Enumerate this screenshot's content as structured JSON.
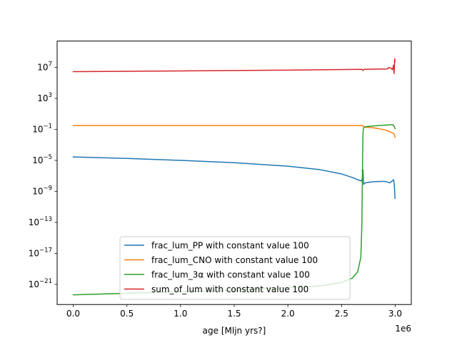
{
  "chart_data": {
    "type": "line",
    "xlabel": "age [Mljn yrs?]",
    "x_offset_label": "1e6",
    "yscale": "log",
    "xlim": [
      -150000,
      3150000
    ],
    "ylim_log10": [
      -23.6,
      10.4
    ],
    "x_ticks": [
      {
        "value": 0,
        "label": "0.0"
      },
      {
        "value": 500000,
        "label": "0.5"
      },
      {
        "value": 1000000,
        "label": "1.0"
      },
      {
        "value": 1500000,
        "label": "1.5"
      },
      {
        "value": 2000000,
        "label": "2.0"
      },
      {
        "value": 2500000,
        "label": "2.5"
      },
      {
        "value": 3000000,
        "label": "3.0"
      }
    ],
    "y_ticks": [
      {
        "exp": 7,
        "base": "10",
        "sup": "7"
      },
      {
        "exp": 3,
        "base": "10",
        "sup": "3"
      },
      {
        "exp": -1,
        "base": "10",
        "sup": "−1"
      },
      {
        "exp": -5,
        "base": "10",
        "sup": "−5"
      },
      {
        "exp": -9,
        "base": "10",
        "sup": "−9"
      },
      {
        "exp": -13,
        "base": "10",
        "sup": "−13"
      },
      {
        "exp": -17,
        "base": "10",
        "sup": "−17"
      },
      {
        "exp": -21,
        "base": "10",
        "sup": "−21"
      }
    ],
    "legend_position": "lower-center",
    "series": [
      {
        "name": "frac_lum_PP with constant value 100",
        "color": "#1f77b4",
        "points": [
          [
            0,
            -4.55
          ],
          [
            500000,
            -4.75
          ],
          [
            1000000,
            -5.0
          ],
          [
            1500000,
            -5.3
          ],
          [
            2000000,
            -5.75
          ],
          [
            2300000,
            -6.2
          ],
          [
            2500000,
            -6.75
          ],
          [
            2600000,
            -7.2
          ],
          [
            2660000,
            -7.55
          ],
          [
            2685000,
            -7.65
          ],
          [
            2695000,
            -7.3
          ],
          [
            2700000,
            -6.2
          ],
          [
            2705000,
            -8.1
          ],
          [
            2720000,
            -7.9
          ],
          [
            2800000,
            -7.75
          ],
          [
            2900000,
            -7.7
          ],
          [
            2930000,
            -7.8
          ],
          [
            2950000,
            -7.9
          ],
          [
            2975000,
            -7.6
          ],
          [
            2985000,
            -7.5
          ],
          [
            2990000,
            -7.95
          ],
          [
            2995000,
            -8.9
          ],
          [
            2998000,
            -9.9
          ]
        ]
      },
      {
        "name": "frac_lum_CNO with constant value 100",
        "color": "#ff7f0e",
        "points": [
          [
            0,
            -0.5
          ],
          [
            1000000,
            -0.5
          ],
          [
            2000000,
            -0.5
          ],
          [
            2690000,
            -0.5
          ],
          [
            2700000,
            -0.5
          ],
          [
            2705000,
            -0.7
          ],
          [
            2800000,
            -0.8
          ],
          [
            2900000,
            -1.05
          ],
          [
            2950000,
            -1.3
          ],
          [
            2975000,
            -1.45
          ],
          [
            2990000,
            -1.6
          ],
          [
            2998000,
            -2.0
          ]
        ]
      },
      {
        "name": "frac_lum_3α with constant value 100",
        "color": "#2ca02c",
        "points": [
          [
            0,
            -22.35
          ],
          [
            500000,
            -22.15
          ],
          [
            1000000,
            -21.95
          ],
          [
            1500000,
            -21.75
          ],
          [
            2000000,
            -21.45
          ],
          [
            2300000,
            -21.2
          ],
          [
            2500000,
            -20.75
          ],
          [
            2600000,
            -20.2
          ],
          [
            2650000,
            -19.4
          ],
          [
            2680000,
            -17.5
          ],
          [
            2690000,
            -13.0
          ],
          [
            2695000,
            -6.0
          ],
          [
            2700000,
            -1.5
          ],
          [
            2705000,
            -0.85
          ],
          [
            2720000,
            -0.65
          ],
          [
            2800000,
            -0.55
          ],
          [
            2900000,
            -0.45
          ],
          [
            2980000,
            -0.4
          ],
          [
            2990000,
            -0.6
          ],
          [
            2998000,
            -0.9
          ]
        ]
      },
      {
        "name": "sum_of_lum with constant value 100",
        "color": "#d62728",
        "points": [
          [
            0,
            6.45
          ],
          [
            1000000,
            6.55
          ],
          [
            2000000,
            6.65
          ],
          [
            2690000,
            6.75
          ],
          [
            2700000,
            6.6
          ],
          [
            2710000,
            6.75
          ],
          [
            2930000,
            6.8
          ],
          [
            2940000,
            7.0
          ],
          [
            2960000,
            6.9
          ],
          [
            2975000,
            6.7
          ],
          [
            2985000,
            7.3
          ],
          [
            2990000,
            6.2
          ],
          [
            2995000,
            8.1
          ],
          [
            2998000,
            7.7
          ]
        ]
      }
    ]
  }
}
